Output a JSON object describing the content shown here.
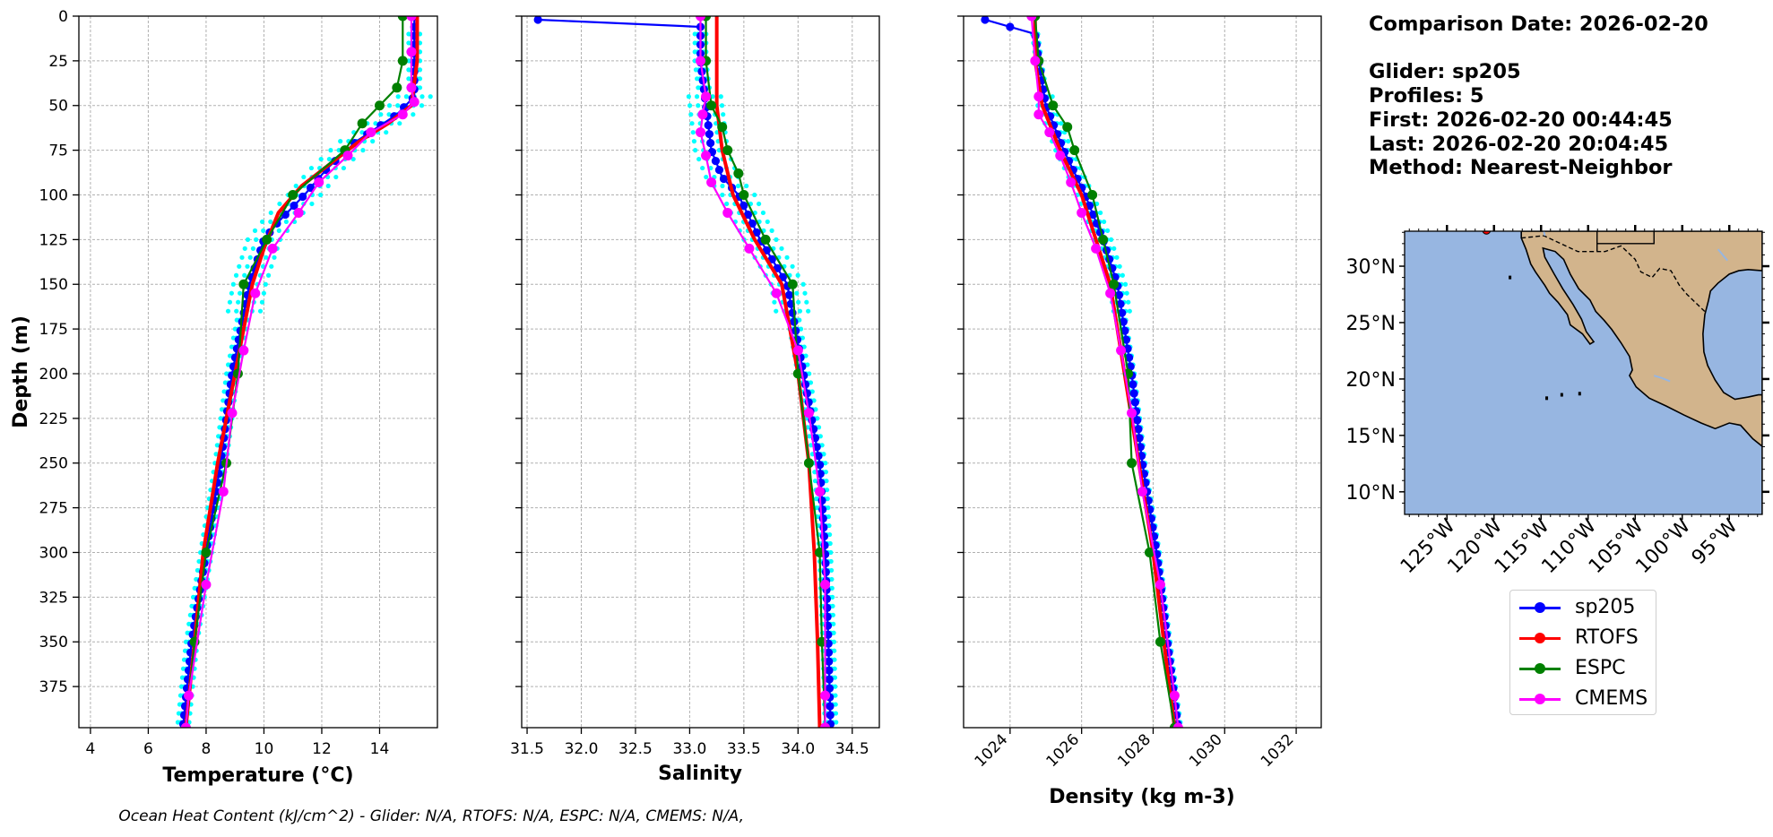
{
  "info": {
    "comparison_date": "Comparison Date: 2026-02-20",
    "glider": "Glider: sp205",
    "profiles": "Profiles: 5",
    "first": "First: 2026-02-20 00:44:45",
    "last": "Last: 2026-02-20 20:04:45",
    "method": "Method: Nearest-Neighbor"
  },
  "footer": "Ocean Heat Content (kJ/cm^2) - Glider: N/A,  RTOFS: N/A,  ESPC: N/A,  CMEMS: N/A,",
  "colors": {
    "sp205": "#0000ff",
    "RTOFS": "#ff0000",
    "ESPC": "#008000",
    "CMEMS": "#ff00ff",
    "glider_profiles": "#00ffff",
    "ocean": "#97b6e1",
    "land": "#d2b48c"
  },
  "legend": [
    {
      "name": "sp205",
      "color": "#0000ff"
    },
    {
      "name": "RTOFS",
      "color": "#ff0000"
    },
    {
      "name": "ESPC",
      "color": "#008000"
    },
    {
      "name": "CMEMS",
      "color": "#ff00ff"
    }
  ],
  "chart_data": [
    {
      "type": "line",
      "xlabel": "Temperature (°C)",
      "ylabel": "Depth (m)",
      "xlim": [
        3.6,
        16
      ],
      "ylim": [
        398,
        0
      ],
      "xticks": [
        4,
        6,
        8,
        10,
        12,
        14
      ],
      "yticks": [
        0,
        25,
        50,
        75,
        100,
        125,
        150,
        175,
        200,
        225,
        250,
        275,
        300,
        325,
        350,
        375
      ],
      "grid": true,
      "series": [
        {
          "name": "sp205",
          "depth": [
            0,
            25,
            45,
            55,
            70,
            85,
            100,
            115,
            125,
            150,
            175,
            200,
            250,
            300,
            350,
            398
          ],
          "values": [
            15.2,
            15.2,
            15.2,
            14.6,
            13.2,
            12.2,
            11.4,
            10.5,
            10.0,
            9.5,
            9.2,
            8.9,
            8.5,
            8.0,
            7.5,
            7.2
          ]
        },
        {
          "name": "RTOFS",
          "depth": [
            0,
            25,
            50,
            60,
            70,
            80,
            95,
            110,
            130,
            150,
            175,
            200,
            250,
            300,
            350,
            398
          ],
          "values": [
            15.3,
            15.3,
            15.1,
            14.3,
            13.3,
            12.5,
            11.3,
            10.5,
            10.0,
            9.6,
            9.3,
            9.0,
            8.4,
            7.9,
            7.6,
            7.3
          ]
        },
        {
          "name": "ESPC",
          "depth": [
            0,
            25,
            40,
            50,
            60,
            75,
            100,
            125,
            150,
            200,
            250,
            300,
            350,
            398
          ],
          "values": [
            14.8,
            14.8,
            14.6,
            14.0,
            13.4,
            12.8,
            11.0,
            10.1,
            9.3,
            9.1,
            8.7,
            8.0,
            7.6,
            7.3
          ]
        },
        {
          "name": "CMEMS",
          "depth": [
            0,
            20,
            40,
            48,
            55,
            65,
            78,
            93,
            110,
            130,
            155,
            187,
            222,
            266,
            318,
            380,
            398
          ],
          "values": [
            15.1,
            15.1,
            15.1,
            15.2,
            14.8,
            13.7,
            12.9,
            11.9,
            11.2,
            10.3,
            9.7,
            9.3,
            8.9,
            8.6,
            8.0,
            7.4,
            7.3
          ]
        }
      ]
    },
    {
      "type": "line",
      "xlabel": "Salinity",
      "xlim": [
        31.45,
        34.75
      ],
      "ylim": [
        398,
        0
      ],
      "xticks": [
        31.5,
        32.0,
        32.5,
        33.0,
        33.5,
        34.0,
        34.5
      ],
      "grid": true,
      "series": [
        {
          "name": "sp205",
          "depth": [
            2,
            6,
            25,
            50,
            75,
            90,
            100,
            125,
            150,
            200,
            250,
            300,
            350,
            398
          ],
          "values": [
            31.6,
            33.1,
            33.1,
            33.15,
            33.2,
            33.3,
            33.45,
            33.65,
            33.9,
            34.05,
            34.2,
            34.25,
            34.28,
            34.3
          ]
        },
        {
          "name": "RTOFS",
          "depth": [
            0,
            25,
            50,
            75,
            100,
            125,
            150,
            200,
            250,
            300,
            350,
            398
          ],
          "values": [
            33.25,
            33.25,
            33.25,
            33.3,
            33.4,
            33.6,
            33.85,
            34.0,
            34.1,
            34.15,
            34.18,
            34.2
          ]
        },
        {
          "name": "ESPC",
          "depth": [
            0,
            25,
            50,
            62,
            75,
            88,
            100,
            125,
            150,
            200,
            250,
            300,
            350,
            398
          ],
          "values": [
            33.15,
            33.15,
            33.2,
            33.3,
            33.35,
            33.45,
            33.5,
            33.7,
            33.95,
            34.0,
            34.1,
            34.2,
            34.22,
            34.25
          ]
        },
        {
          "name": "CMEMS",
          "depth": [
            0,
            25,
            45,
            55,
            65,
            78,
            93,
            110,
            130,
            155,
            187,
            222,
            266,
            318,
            380,
            398
          ],
          "values": [
            33.1,
            33.1,
            33.15,
            33.12,
            33.1,
            33.15,
            33.2,
            33.35,
            33.55,
            33.8,
            34.0,
            34.1,
            34.2,
            34.25,
            34.25,
            34.25
          ]
        }
      ]
    },
    {
      "type": "line",
      "xlabel": "Density (kg m-3)",
      "xlim": [
        1022.7,
        1032.7
      ],
      "ylim": [
        398,
        0
      ],
      "xticks": [
        1024,
        1026,
        1028,
        1030,
        1032
      ],
      "grid": true,
      "series": [
        {
          "name": "sp205",
          "depth": [
            2,
            10,
            25,
            50,
            75,
            100,
            125,
            150,
            200,
            250,
            300,
            350,
            398
          ],
          "values": [
            1023.3,
            1024.7,
            1024.8,
            1025.0,
            1025.5,
            1026.1,
            1026.6,
            1027.0,
            1027.4,
            1027.7,
            1028.1,
            1028.4,
            1028.7
          ]
        },
        {
          "name": "RTOFS",
          "depth": [
            0,
            25,
            50,
            75,
            100,
            125,
            150,
            200,
            250,
            300,
            350,
            398
          ],
          "values": [
            1024.7,
            1024.7,
            1024.9,
            1025.4,
            1026.0,
            1026.4,
            1026.8,
            1027.2,
            1027.6,
            1028.0,
            1028.3,
            1028.6
          ]
        },
        {
          "name": "ESPC",
          "depth": [
            0,
            25,
            50,
            62,
            75,
            100,
            125,
            150,
            200,
            250,
            300,
            350,
            398
          ],
          "values": [
            1024.7,
            1024.8,
            1025.2,
            1025.6,
            1025.8,
            1026.3,
            1026.6,
            1026.9,
            1027.3,
            1027.4,
            1027.9,
            1028.2,
            1028.6
          ]
        },
        {
          "name": "CMEMS",
          "depth": [
            0,
            25,
            45,
            55,
            65,
            78,
            93,
            110,
            130,
            155,
            187,
            222,
            266,
            318,
            380,
            398
          ],
          "values": [
            1024.6,
            1024.7,
            1024.8,
            1024.8,
            1025.1,
            1025.4,
            1025.7,
            1026.0,
            1026.4,
            1026.8,
            1027.1,
            1027.4,
            1027.7,
            1028.2,
            1028.6,
            1028.7
          ]
        }
      ]
    }
  ],
  "map": {
    "lon_ticks": [
      "125°W",
      "120°W",
      "115°W",
      "110°W",
      "105°W",
      "100°W",
      "95°W"
    ],
    "lat_ticks": [
      "30°N",
      "25°N",
      "20°N",
      "15°N",
      "10°N"
    ],
    "glider_marker": {
      "lon": -120.8,
      "lat": 33.2
    }
  }
}
